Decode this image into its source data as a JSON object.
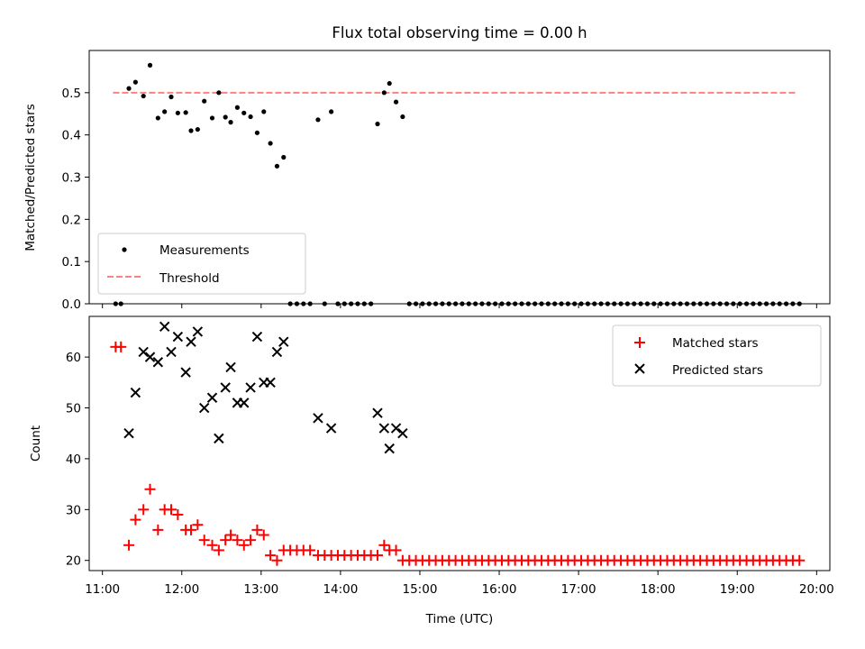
{
  "chart_data": {
    "title": "Flux total observing time = 0.00 h",
    "xlabel": "Time (UTC)",
    "xlim": [
      "10:50",
      "20:10"
    ],
    "x_ticks": [
      "11:00",
      "12:00",
      "13:00",
      "14:00",
      "15:00",
      "16:00",
      "17:00",
      "18:00",
      "19:00",
      "20:00"
    ],
    "colors": {
      "measurements": "#000000",
      "threshold": "#ff8080",
      "matched": "#ff0000",
      "predicted": "#000000"
    },
    "top": {
      "type": "scatter",
      "ylabel": "Matched/Predicted stars",
      "ylim": [
        0,
        0.6
      ],
      "y_ticks": [
        "0.0",
        "0.1",
        "0.2",
        "0.3",
        "0.4",
        "0.5"
      ],
      "legend": {
        "position": "bottom-left",
        "measurements_label": "Measurements",
        "threshold_label": "Threshold"
      },
      "threshold": {
        "value": 0.5,
        "x_start": "11:08",
        "x_end": "19:45"
      },
      "measurements": [
        {
          "x": "11:10",
          "y": 0.0
        },
        {
          "x": "11:14",
          "y": 0.0
        },
        {
          "x": "11:20",
          "y": 0.51
        },
        {
          "x": "11:25",
          "y": 0.525
        },
        {
          "x": "11:31",
          "y": 0.492
        },
        {
          "x": "11:36",
          "y": 0.565
        },
        {
          "x": "11:42",
          "y": 0.44
        },
        {
          "x": "11:47",
          "y": 0.455
        },
        {
          "x": "11:52",
          "y": 0.49
        },
        {
          "x": "11:57",
          "y": 0.452
        },
        {
          "x": "12:03",
          "y": 0.453
        },
        {
          "x": "12:07",
          "y": 0.41
        },
        {
          "x": "12:12",
          "y": 0.413
        },
        {
          "x": "12:17",
          "y": 0.48
        },
        {
          "x": "12:23",
          "y": 0.44
        },
        {
          "x": "12:28",
          "y": 0.5
        },
        {
          "x": "12:33",
          "y": 0.442
        },
        {
          "x": "12:37",
          "y": 0.43
        },
        {
          "x": "12:42",
          "y": 0.465
        },
        {
          "x": "12:47",
          "y": 0.452
        },
        {
          "x": "12:52",
          "y": 0.443
        },
        {
          "x": "12:57",
          "y": 0.405
        },
        {
          "x": "13:02",
          "y": 0.455
        },
        {
          "x": "13:07",
          "y": 0.38
        },
        {
          "x": "13:12",
          "y": 0.326
        },
        {
          "x": "13:17",
          "y": 0.347
        },
        {
          "x": "13:22",
          "y": 0.0
        },
        {
          "x": "13:27",
          "y": 0.0
        },
        {
          "x": "13:32",
          "y": 0.0
        },
        {
          "x": "13:37",
          "y": 0.0
        },
        {
          "x": "13:43",
          "y": 0.436
        },
        {
          "x": "13:48",
          "y": 0.0
        },
        {
          "x": "13:53",
          "y": 0.455
        },
        {
          "x": "13:58",
          "y": 0.0
        },
        {
          "x": "14:03",
          "y": 0.0
        },
        {
          "x": "14:08",
          "y": 0.0
        },
        {
          "x": "14:13",
          "y": 0.0
        },
        {
          "x": "14:18",
          "y": 0.0
        },
        {
          "x": "14:23",
          "y": 0.0
        },
        {
          "x": "14:28",
          "y": 0.426
        },
        {
          "x": "14:33",
          "y": 0.5
        },
        {
          "x": "14:37",
          "y": 0.522
        },
        {
          "x": "14:42",
          "y": 0.478
        },
        {
          "x": "14:47",
          "y": 0.443
        },
        {
          "x": "14:52",
          "y": 0.0
        },
        {
          "x": "14:57",
          "y": 0.0
        },
        {
          "x": "15:02",
          "y": 0.0
        },
        {
          "x": "15:07",
          "y": 0.0
        },
        {
          "x": "15:12",
          "y": 0.0
        },
        {
          "x": "15:17",
          "y": 0.0
        },
        {
          "x": "15:22",
          "y": 0.0
        },
        {
          "x": "15:27",
          "y": 0.0
        },
        {
          "x": "15:32",
          "y": 0.0
        },
        {
          "x": "15:37",
          "y": 0.0
        },
        {
          "x": "15:42",
          "y": 0.0
        },
        {
          "x": "15:47",
          "y": 0.0
        },
        {
          "x": "15:52",
          "y": 0.0
        },
        {
          "x": "15:57",
          "y": 0.0
        },
        {
          "x": "16:02",
          "y": 0.0
        },
        {
          "x": "16:07",
          "y": 0.0
        },
        {
          "x": "16:12",
          "y": 0.0
        },
        {
          "x": "16:17",
          "y": 0.0
        },
        {
          "x": "16:22",
          "y": 0.0
        },
        {
          "x": "16:27",
          "y": 0.0
        },
        {
          "x": "16:32",
          "y": 0.0
        },
        {
          "x": "16:37",
          "y": 0.0
        },
        {
          "x": "16:42",
          "y": 0.0
        },
        {
          "x": "16:47",
          "y": 0.0
        },
        {
          "x": "16:52",
          "y": 0.0
        },
        {
          "x": "16:57",
          "y": 0.0
        },
        {
          "x": "17:02",
          "y": 0.0
        },
        {
          "x": "17:07",
          "y": 0.0
        },
        {
          "x": "17:12",
          "y": 0.0
        },
        {
          "x": "17:17",
          "y": 0.0
        },
        {
          "x": "17:22",
          "y": 0.0
        },
        {
          "x": "17:27",
          "y": 0.0
        },
        {
          "x": "17:32",
          "y": 0.0
        },
        {
          "x": "17:37",
          "y": 0.0
        },
        {
          "x": "17:42",
          "y": 0.0
        },
        {
          "x": "17:47",
          "y": 0.0
        },
        {
          "x": "17:52",
          "y": 0.0
        },
        {
          "x": "17:57",
          "y": 0.0
        },
        {
          "x": "18:02",
          "y": 0.0
        },
        {
          "x": "18:07",
          "y": 0.0
        },
        {
          "x": "18:12",
          "y": 0.0
        },
        {
          "x": "18:17",
          "y": 0.0
        },
        {
          "x": "18:22",
          "y": 0.0
        },
        {
          "x": "18:27",
          "y": 0.0
        },
        {
          "x": "18:32",
          "y": 0.0
        },
        {
          "x": "18:37",
          "y": 0.0
        },
        {
          "x": "18:42",
          "y": 0.0
        },
        {
          "x": "18:47",
          "y": 0.0
        },
        {
          "x": "18:52",
          "y": 0.0
        },
        {
          "x": "18:57",
          "y": 0.0
        },
        {
          "x": "19:02",
          "y": 0.0
        },
        {
          "x": "19:07",
          "y": 0.0
        },
        {
          "x": "19:12",
          "y": 0.0
        },
        {
          "x": "19:17",
          "y": 0.0
        },
        {
          "x": "19:22",
          "y": 0.0
        },
        {
          "x": "19:27",
          "y": 0.0
        },
        {
          "x": "19:32",
          "y": 0.0
        },
        {
          "x": "19:37",
          "y": 0.0
        },
        {
          "x": "19:42",
          "y": 0.0
        },
        {
          "x": "19:47",
          "y": 0.0
        }
      ]
    },
    "bottom": {
      "type": "scatter",
      "ylabel": "Count",
      "ylim": [
        18,
        68
      ],
      "y_ticks": [
        "20",
        "30",
        "40",
        "50",
        "60"
      ],
      "legend": {
        "position": "top-right",
        "matched_label": "Matched stars",
        "predicted_label": "Predicted stars"
      },
      "matched": [
        {
          "x": "11:10",
          "y": 62
        },
        {
          "x": "11:14",
          "y": 62
        },
        {
          "x": "11:20",
          "y": 23
        },
        {
          "x": "11:25",
          "y": 28
        },
        {
          "x": "11:31",
          "y": 30
        },
        {
          "x": "11:36",
          "y": 34
        },
        {
          "x": "11:42",
          "y": 26
        },
        {
          "x": "11:47",
          "y": 30
        },
        {
          "x": "11:52",
          "y": 30
        },
        {
          "x": "11:57",
          "y": 29
        },
        {
          "x": "12:03",
          "y": 26
        },
        {
          "x": "12:07",
          "y": 26
        },
        {
          "x": "12:12",
          "y": 27
        },
        {
          "x": "12:17",
          "y": 24
        },
        {
          "x": "12:23",
          "y": 23
        },
        {
          "x": "12:28",
          "y": 22
        },
        {
          "x": "12:33",
          "y": 24
        },
        {
          "x": "12:37",
          "y": 25
        },
        {
          "x": "12:42",
          "y": 24
        },
        {
          "x": "12:47",
          "y": 23
        },
        {
          "x": "12:52",
          "y": 24
        },
        {
          "x": "12:57",
          "y": 26
        },
        {
          "x": "13:02",
          "y": 25
        },
        {
          "x": "13:07",
          "y": 21
        },
        {
          "x": "13:12",
          "y": 20
        },
        {
          "x": "13:17",
          "y": 22
        },
        {
          "x": "13:22",
          "y": 22
        },
        {
          "x": "13:27",
          "y": 22
        },
        {
          "x": "13:32",
          "y": 22
        },
        {
          "x": "13:37",
          "y": 22
        },
        {
          "x": "13:43",
          "y": 21
        },
        {
          "x": "13:48",
          "y": 21
        },
        {
          "x": "13:53",
          "y": 21
        },
        {
          "x": "13:58",
          "y": 21
        },
        {
          "x": "14:03",
          "y": 21
        },
        {
          "x": "14:08",
          "y": 21
        },
        {
          "x": "14:13",
          "y": 21
        },
        {
          "x": "14:18",
          "y": 21
        },
        {
          "x": "14:23",
          "y": 21
        },
        {
          "x": "14:28",
          "y": 21
        },
        {
          "x": "14:33",
          "y": 23
        },
        {
          "x": "14:37",
          "y": 22
        },
        {
          "x": "14:42",
          "y": 22
        },
        {
          "x": "14:47",
          "y": 20
        },
        {
          "x": "14:52",
          "y": 20
        },
        {
          "x": "14:57",
          "y": 20
        },
        {
          "x": "15:02",
          "y": 20
        },
        {
          "x": "15:07",
          "y": 20
        },
        {
          "x": "15:12",
          "y": 20
        },
        {
          "x": "15:17",
          "y": 20
        },
        {
          "x": "15:22",
          "y": 20
        },
        {
          "x": "15:27",
          "y": 20
        },
        {
          "x": "15:32",
          "y": 20
        },
        {
          "x": "15:37",
          "y": 20
        },
        {
          "x": "15:42",
          "y": 20
        },
        {
          "x": "15:47",
          "y": 20
        },
        {
          "x": "15:52",
          "y": 20
        },
        {
          "x": "15:57",
          "y": 20
        },
        {
          "x": "16:02",
          "y": 20
        },
        {
          "x": "16:07",
          "y": 20
        },
        {
          "x": "16:12",
          "y": 20
        },
        {
          "x": "16:17",
          "y": 20
        },
        {
          "x": "16:22",
          "y": 20
        },
        {
          "x": "16:27",
          "y": 20
        },
        {
          "x": "16:32",
          "y": 20
        },
        {
          "x": "16:37",
          "y": 20
        },
        {
          "x": "16:42",
          "y": 20
        },
        {
          "x": "16:47",
          "y": 20
        },
        {
          "x": "16:52",
          "y": 20
        },
        {
          "x": "16:57",
          "y": 20
        },
        {
          "x": "17:02",
          "y": 20
        },
        {
          "x": "17:07",
          "y": 20
        },
        {
          "x": "17:12",
          "y": 20
        },
        {
          "x": "17:17",
          "y": 20
        },
        {
          "x": "17:22",
          "y": 20
        },
        {
          "x": "17:27",
          "y": 20
        },
        {
          "x": "17:32",
          "y": 20
        },
        {
          "x": "17:37",
          "y": 20
        },
        {
          "x": "17:42",
          "y": 20
        },
        {
          "x": "17:47",
          "y": 20
        },
        {
          "x": "17:52",
          "y": 20
        },
        {
          "x": "17:57",
          "y": 20
        },
        {
          "x": "18:02",
          "y": 20
        },
        {
          "x": "18:07",
          "y": 20
        },
        {
          "x": "18:12",
          "y": 20
        },
        {
          "x": "18:17",
          "y": 20
        },
        {
          "x": "18:22",
          "y": 20
        },
        {
          "x": "18:27",
          "y": 20
        },
        {
          "x": "18:32",
          "y": 20
        },
        {
          "x": "18:37",
          "y": 20
        },
        {
          "x": "18:42",
          "y": 20
        },
        {
          "x": "18:47",
          "y": 20
        },
        {
          "x": "18:52",
          "y": 20
        },
        {
          "x": "18:57",
          "y": 20
        },
        {
          "x": "19:02",
          "y": 20
        },
        {
          "x": "19:07",
          "y": 20
        },
        {
          "x": "19:12",
          "y": 20
        },
        {
          "x": "19:17",
          "y": 20
        },
        {
          "x": "19:22",
          "y": 20
        },
        {
          "x": "19:27",
          "y": 20
        },
        {
          "x": "19:32",
          "y": 20
        },
        {
          "x": "19:37",
          "y": 20
        },
        {
          "x": "19:42",
          "y": 20
        },
        {
          "x": "19:47",
          "y": 20
        }
      ],
      "predicted": [
        {
          "x": "11:20",
          "y": 45
        },
        {
          "x": "11:25",
          "y": 53
        },
        {
          "x": "11:31",
          "y": 61
        },
        {
          "x": "11:36",
          "y": 60
        },
        {
          "x": "11:42",
          "y": 59
        },
        {
          "x": "11:47",
          "y": 66
        },
        {
          "x": "11:52",
          "y": 61
        },
        {
          "x": "11:57",
          "y": 64
        },
        {
          "x": "12:03",
          "y": 57
        },
        {
          "x": "12:07",
          "y": 63
        },
        {
          "x": "12:12",
          "y": 65
        },
        {
          "x": "12:17",
          "y": 50
        },
        {
          "x": "12:23",
          "y": 52
        },
        {
          "x": "12:28",
          "y": 44
        },
        {
          "x": "12:33",
          "y": 54
        },
        {
          "x": "12:37",
          "y": 58
        },
        {
          "x": "12:42",
          "y": 51
        },
        {
          "x": "12:47",
          "y": 51
        },
        {
          "x": "12:52",
          "y": 54
        },
        {
          "x": "12:57",
          "y": 64
        },
        {
          "x": "13:02",
          "y": 55
        },
        {
          "x": "13:07",
          "y": 55
        },
        {
          "x": "13:12",
          "y": 61
        },
        {
          "x": "13:17",
          "y": 63
        },
        {
          "x": "13:43",
          "y": 48
        },
        {
          "x": "13:53",
          "y": 46
        },
        {
          "x": "14:28",
          "y": 49
        },
        {
          "x": "14:33",
          "y": 46
        },
        {
          "x": "14:37",
          "y": 42
        },
        {
          "x": "14:42",
          "y": 46
        },
        {
          "x": "14:47",
          "y": 45
        }
      ]
    }
  }
}
